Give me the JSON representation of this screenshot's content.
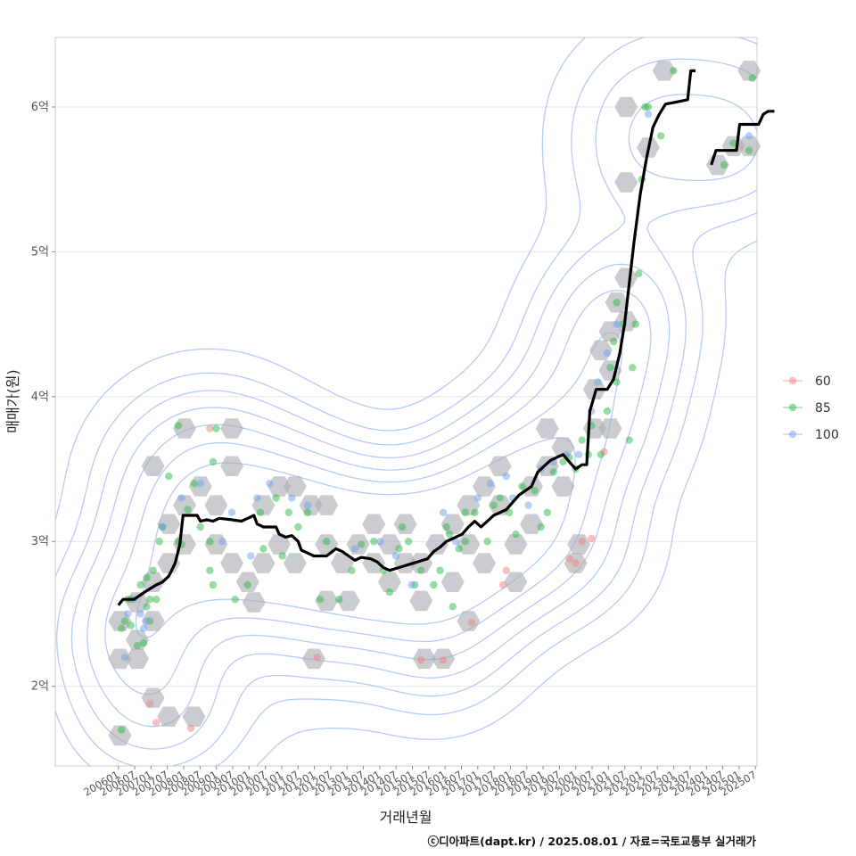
{
  "chart_data": {
    "type": "scatter",
    "xlabel": "거래년월",
    "ylabel": "매매가(원)",
    "ylim": [
      1.45,
      6.48
    ],
    "xlim": [
      2004.0,
      2026.25
    ],
    "y_ticks": [
      {
        "value": 2,
        "label": "2억"
      },
      {
        "value": 3,
        "label": "3억"
      },
      {
        "value": 4,
        "label": "4억"
      },
      {
        "value": 5,
        "label": "5억"
      },
      {
        "value": 6,
        "label": "6억"
      }
    ],
    "x_ticks": [
      "200601",
      "200607",
      "200701",
      "200707",
      "200801",
      "200807",
      "200901",
      "200907",
      "201001",
      "201007",
      "201101",
      "201107",
      "201201",
      "201207",
      "201301",
      "201307",
      "201401",
      "201407",
      "201501",
      "201507",
      "201601",
      "201607",
      "201701",
      "201707",
      "201801",
      "201807",
      "201901",
      "201907",
      "202001",
      "202007",
      "202101",
      "202107",
      "202201",
      "202207",
      "202301",
      "202307",
      "202401",
      "202407",
      "202501",
      "202507"
    ],
    "grid": true,
    "legend_position": "right",
    "legend": [
      {
        "name": "60",
        "color": "#f08080"
      },
      {
        "name": "85",
        "color": "#2db84a"
      },
      {
        "name": "100",
        "color": "#6fa0f0"
      }
    ],
    "hex_cells": [
      [
        2006.05,
        1.66
      ],
      [
        2006.05,
        2.19
      ],
      [
        2006.05,
        2.45
      ],
      [
        2006.6,
        2.32
      ],
      [
        2006.6,
        2.58
      ],
      [
        2006.6,
        2.19
      ],
      [
        2007.1,
        1.92
      ],
      [
        2007.1,
        2.45
      ],
      [
        2007.1,
        2.72
      ],
      [
        2007.1,
        3.52
      ],
      [
        2007.6,
        1.79
      ],
      [
        2007.6,
        2.85
      ],
      [
        2007.6,
        3.12
      ],
      [
        2008.1,
        2.98
      ],
      [
        2008.1,
        3.25
      ],
      [
        2008.1,
        3.78
      ],
      [
        2008.4,
        1.79
      ],
      [
        2008.6,
        3.38
      ],
      [
        2009.1,
        2.98
      ],
      [
        2009.1,
        3.25
      ],
      [
        2009.6,
        2.85
      ],
      [
        2009.6,
        3.52
      ],
      [
        2009.6,
        3.78
      ],
      [
        2010.1,
        2.72
      ],
      [
        2010.3,
        2.58
      ],
      [
        2010.6,
        2.85
      ],
      [
        2010.6,
        3.25
      ],
      [
        2011.1,
        3.38
      ],
      [
        2011.1,
        2.98
      ],
      [
        2011.6,
        2.85
      ],
      [
        2011.6,
        3.38
      ],
      [
        2012.1,
        3.25
      ],
      [
        2012.2,
        2.19
      ],
      [
        2012.6,
        2.98
      ],
      [
        2012.6,
        3.25
      ],
      [
        2012.6,
        2.59
      ],
      [
        2013.1,
        2.85
      ],
      [
        2013.3,
        2.59
      ],
      [
        2013.6,
        2.98
      ],
      [
        2014.1,
        2.85
      ],
      [
        2014.1,
        3.12
      ],
      [
        2014.6,
        2.72
      ],
      [
        2014.6,
        2.98
      ],
      [
        2015.1,
        3.12
      ],
      [
        2015.1,
        2.85
      ],
      [
        2015.6,
        2.59
      ],
      [
        2015.6,
        2.85
      ],
      [
        2015.7,
        2.19
      ],
      [
        2016.1,
        2.98
      ],
      [
        2016.3,
        2.19
      ],
      [
        2016.6,
        2.72
      ],
      [
        2016.6,
        3.12
      ],
      [
        2017.1,
        2.45
      ],
      [
        2017.1,
        2.98
      ],
      [
        2017.1,
        3.25
      ],
      [
        2017.6,
        3.38
      ],
      [
        2017.6,
        2.85
      ],
      [
        2018.1,
        3.25
      ],
      [
        2018.1,
        3.52
      ],
      [
        2018.6,
        2.72
      ],
      [
        2018.6,
        2.98
      ],
      [
        2019.1,
        3.12
      ],
      [
        2019.1,
        3.38
      ],
      [
        2019.6,
        3.52
      ],
      [
        2019.6,
        3.78
      ],
      [
        2020.1,
        3.65
      ],
      [
        2020.1,
        3.38
      ],
      [
        2020.5,
        2.85
      ],
      [
        2020.6,
        2.98
      ],
      [
        2021.1,
        3.78
      ],
      [
        2021.1,
        4.05
      ],
      [
        2021.3,
        4.32
      ],
      [
        2021.6,
        4.45
      ],
      [
        2021.6,
        4.18
      ],
      [
        2021.6,
        3.78
      ],
      [
        2021.8,
        4.65
      ],
      [
        2022.1,
        4.52
      ],
      [
        2022.1,
        4.82
      ],
      [
        2022.1,
        5.48
      ],
      [
        2022.1,
        6.0
      ],
      [
        2022.8,
        5.72
      ],
      [
        2023.3,
        6.25
      ],
      [
        2025.0,
        5.6
      ],
      [
        2025.5,
        5.73
      ],
      [
        2026.0,
        5.73
      ],
      [
        2026.0,
        6.25
      ]
    ],
    "points": {
      "60": [
        [
          2007.0,
          1.88
        ],
        [
          2007.2,
          1.75
        ],
        [
          2008.3,
          1.71
        ],
        [
          2012.3,
          2.2
        ],
        [
          2015.6,
          2.18
        ],
        [
          2016.3,
          2.18
        ],
        [
          2017.2,
          2.44
        ],
        [
          2018.2,
          2.7
        ],
        [
          2018.3,
          2.8
        ],
        [
          2020.3,
          2.88
        ],
        [
          2020.5,
          2.85
        ],
        [
          2020.7,
          3.0
        ],
        [
          2021.0,
          3.02
        ],
        [
          2021.4,
          3.62
        ],
        [
          2008.9,
          3.78
        ]
      ],
      "85": [
        [
          2006.1,
          1.7
        ],
        [
          2006.1,
          2.4
        ],
        [
          2006.2,
          2.45
        ],
        [
          2006.4,
          2.6
        ],
        [
          2006.4,
          2.42
        ],
        [
          2006.6,
          2.28
        ],
        [
          2006.7,
          2.7
        ],
        [
          2006.9,
          2.55
        ],
        [
          2006.9,
          2.75
        ],
        [
          2007.0,
          2.6
        ],
        [
          2007.1,
          2.8
        ],
        [
          2007.2,
          2.6
        ],
        [
          2007.3,
          3.0
        ],
        [
          2007.4,
          3.1
        ],
        [
          2007.6,
          3.45
        ],
        [
          2007.9,
          3.8
        ],
        [
          2007.9,
          3.0
        ],
        [
          2008.0,
          2.98
        ],
        [
          2008.2,
          3.22
        ],
        [
          2008.4,
          3.4
        ],
        [
          2008.6,
          3.1
        ],
        [
          2008.9,
          3.0
        ],
        [
          2008.9,
          2.8
        ],
        [
          2009.0,
          2.7
        ],
        [
          2009.0,
          3.55
        ],
        [
          2009.1,
          3.78
        ],
        [
          2009.7,
          2.6
        ],
        [
          2010.1,
          2.7
        ],
        [
          2010.5,
          3.2
        ],
        [
          2010.6,
          2.95
        ],
        [
          2011.0,
          3.3
        ],
        [
          2011.2,
          2.9
        ],
        [
          2011.4,
          3.2
        ],
        [
          2011.7,
          3.1
        ],
        [
          2012.0,
          3.2
        ],
        [
          2012.4,
          2.6
        ],
        [
          2012.6,
          3.0
        ],
        [
          2013.0,
          2.6
        ],
        [
          2013.4,
          2.8
        ],
        [
          2013.7,
          2.98
        ],
        [
          2014.1,
          3.0
        ],
        [
          2014.4,
          2.8
        ],
        [
          2014.6,
          2.65
        ],
        [
          2014.9,
          2.95
        ],
        [
          2015.2,
          3.0
        ],
        [
          2015.4,
          2.7
        ],
        [
          2015.6,
          2.8
        ],
        [
          2016.0,
          2.7
        ],
        [
          2016.2,
          2.8
        ],
        [
          2016.4,
          3.1
        ],
        [
          2016.6,
          2.55
        ],
        [
          2016.8,
          2.95
        ],
        [
          2017.0,
          3.0
        ],
        [
          2017.3,
          3.2
        ],
        [
          2017.7,
          3.0
        ],
        [
          2017.9,
          3.25
        ],
        [
          2018.1,
          3.3
        ],
        [
          2018.4,
          3.2
        ],
        [
          2018.6,
          3.05
        ],
        [
          2018.8,
          3.38
        ],
        [
          2019.2,
          3.35
        ],
        [
          2019.4,
          3.1
        ],
        [
          2019.6,
          3.2
        ],
        [
          2019.8,
          3.48
        ],
        [
          2020.1,
          3.55
        ],
        [
          2020.3,
          3.58
        ],
        [
          2020.5,
          3.5
        ],
        [
          2020.7,
          3.7
        ],
        [
          2020.9,
          3.6
        ],
        [
          2021.0,
          3.8
        ],
        [
          2021.3,
          3.6
        ],
        [
          2021.5,
          3.9
        ],
        [
          2021.6,
          4.2
        ],
        [
          2021.7,
          4.38
        ],
        [
          2021.8,
          4.1
        ],
        [
          2021.8,
          4.65
        ],
        [
          2022.0,
          4.5
        ],
        [
          2022.2,
          3.7
        ],
        [
          2022.3,
          4.2
        ],
        [
          2022.4,
          4.5
        ],
        [
          2022.5,
          4.85
        ],
        [
          2022.6,
          5.5
        ],
        [
          2022.7,
          6.0
        ],
        [
          2022.8,
          6.0
        ],
        [
          2023.2,
          5.8
        ],
        [
          2023.6,
          6.25
        ],
        [
          2025.2,
          5.6
        ],
        [
          2025.5,
          5.75
        ],
        [
          2026.0,
          5.7
        ],
        [
          2026.1,
          6.2
        ],
        [
          2006.3,
          2.6
        ],
        [
          2006.8,
          2.3
        ],
        [
          2007.0,
          2.45
        ],
        [
          2015.0,
          3.1
        ],
        [
          2016.5,
          3.05
        ],
        [
          2017.0,
          3.2
        ]
      ],
      "100": [
        [
          2006.2,
          2.2
        ],
        [
          2006.3,
          2.5
        ],
        [
          2006.5,
          2.6
        ],
        [
          2006.7,
          2.5
        ],
        [
          2006.8,
          2.4
        ],
        [
          2006.9,
          2.45
        ],
        [
          2007.4,
          3.1
        ],
        [
          2008.0,
          3.3
        ],
        [
          2008.6,
          3.4
        ],
        [
          2009.3,
          3.0
        ],
        [
          2009.6,
          3.2
        ],
        [
          2010.2,
          2.9
        ],
        [
          2010.4,
          3.3
        ],
        [
          2010.8,
          3.4
        ],
        [
          2011.5,
          3.3
        ],
        [
          2012.0,
          3.25
        ],
        [
          2013.5,
          2.95
        ],
        [
          2014.3,
          3.0
        ],
        [
          2014.8,
          2.9
        ],
        [
          2015.3,
          2.7
        ],
        [
          2016.3,
          3.2
        ],
        [
          2016.7,
          3.0
        ],
        [
          2017.4,
          3.3
        ],
        [
          2017.8,
          3.4
        ],
        [
          2018.3,
          3.45
        ],
        [
          2018.5,
          3.3
        ],
        [
          2019.0,
          3.25
        ],
        [
          2019.4,
          3.5
        ],
        [
          2019.8,
          3.55
        ],
        [
          2020.2,
          3.6
        ],
        [
          2020.6,
          3.6
        ],
        [
          2021.0,
          3.9
        ],
        [
          2021.2,
          4.1
        ],
        [
          2021.5,
          4.3
        ],
        [
          2021.8,
          4.5
        ],
        [
          2022.8,
          5.95
        ],
        [
          2026.0,
          5.8
        ]
      ]
    },
    "trend_line": [
      [
        2006.0,
        2.56
      ],
      [
        2006.15,
        2.6
      ],
      [
        2006.5,
        2.6
      ],
      [
        2006.7,
        2.63
      ],
      [
        2006.9,
        2.66
      ],
      [
        2007.2,
        2.7
      ],
      [
        2007.4,
        2.72
      ],
      [
        2007.6,
        2.76
      ],
      [
        2007.8,
        2.85
      ],
      [
        2007.95,
        2.98
      ],
      [
        2008.05,
        3.18
      ],
      [
        2008.5,
        3.18
      ],
      [
        2008.6,
        3.14
      ],
      [
        2008.8,
        3.15
      ],
      [
        2009.0,
        3.14
      ],
      [
        2009.2,
        3.16
      ],
      [
        2009.6,
        3.15
      ],
      [
        2009.9,
        3.14
      ],
      [
        2010.1,
        3.16
      ],
      [
        2010.3,
        3.18
      ],
      [
        2010.4,
        3.12
      ],
      [
        2010.6,
        3.1
      ],
      [
        2011.0,
        3.1
      ],
      [
        2011.1,
        3.05
      ],
      [
        2011.3,
        3.03
      ],
      [
        2011.5,
        3.04
      ],
      [
        2011.7,
        3.0
      ],
      [
        2011.8,
        2.94
      ],
      [
        2012.0,
        2.92
      ],
      [
        2012.2,
        2.9
      ],
      [
        2012.6,
        2.9
      ],
      [
        2012.9,
        2.95
      ],
      [
        2013.1,
        2.93
      ],
      [
        2013.3,
        2.9
      ],
      [
        2013.5,
        2.87
      ],
      [
        2013.7,
        2.89
      ],
      [
        2014.0,
        2.88
      ],
      [
        2014.2,
        2.86
      ],
      [
        2014.4,
        2.82
      ],
      [
        2014.6,
        2.8
      ],
      [
        2014.9,
        2.82
      ],
      [
        2015.2,
        2.84
      ],
      [
        2015.5,
        2.86
      ],
      [
        2015.8,
        2.88
      ],
      [
        2016.0,
        2.93
      ],
      [
        2016.2,
        2.96
      ],
      [
        2016.4,
        3.0
      ],
      [
        2016.6,
        3.02
      ],
      [
        2016.9,
        3.05
      ],
      [
        2017.1,
        3.1
      ],
      [
        2017.3,
        3.14
      ],
      [
        2017.5,
        3.1
      ],
      [
        2017.7,
        3.14
      ],
      [
        2017.9,
        3.18
      ],
      [
        2018.1,
        3.2
      ],
      [
        2018.3,
        3.22
      ],
      [
        2018.5,
        3.27
      ],
      [
        2018.7,
        3.32
      ],
      [
        2018.9,
        3.35
      ],
      [
        2019.1,
        3.38
      ],
      [
        2019.3,
        3.48
      ],
      [
        2019.5,
        3.52
      ],
      [
        2019.7,
        3.56
      ],
      [
        2019.9,
        3.58
      ],
      [
        2020.1,
        3.6
      ],
      [
        2020.3,
        3.55
      ],
      [
        2020.5,
        3.5
      ],
      [
        2020.7,
        3.53
      ],
      [
        2020.85,
        3.53
      ],
      [
        2020.95,
        3.9
      ],
      [
        2021.15,
        4.05
      ],
      [
        2021.5,
        4.05
      ],
      [
        2021.7,
        4.12
      ],
      [
        2021.9,
        4.3
      ],
      [
        2022.05,
        4.5
      ],
      [
        2022.2,
        4.78
      ],
      [
        2022.35,
        5.07
      ],
      [
        2022.55,
        5.4
      ],
      [
        2022.75,
        5.65
      ],
      [
        2022.95,
        5.86
      ],
      [
        2023.15,
        5.95
      ],
      [
        2023.35,
        6.02
      ],
      [
        2023.6,
        6.03
      ],
      [
        2024.05,
        6.05
      ],
      [
        2024.15,
        6.25
      ],
      [
        2024.3,
        6.25
      ]
    ],
    "trend_line_2": [
      [
        2024.8,
        5.6
      ],
      [
        2024.95,
        5.7
      ],
      [
        2025.6,
        5.7
      ],
      [
        2025.7,
        5.88
      ],
      [
        2026.3,
        5.88
      ],
      [
        2026.45,
        5.95
      ],
      [
        2026.6,
        5.97
      ],
      [
        2026.8,
        5.97
      ]
    ]
  },
  "footer": "ⓒ디아파트(dapt.kr) / 2025.08.01 / 자료=국토교통부 실거래가"
}
